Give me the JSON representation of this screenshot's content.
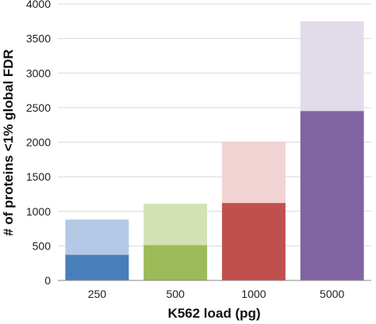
{
  "chart_data": {
    "type": "bar",
    "categories": [
      "250",
      "500",
      "1000",
      "5000"
    ],
    "series": [
      {
        "values": [
          370,
          510,
          1120,
          2450
        ],
        "colors": [
          "#4a7ebb",
          "#9bbb59",
          "#c0504d",
          "#8064a2"
        ]
      },
      {
        "values": [
          880,
          1110,
          2010,
          3750
        ],
        "colors": [
          "#b3c9e6",
          "#d3e2b4",
          "#f0d3d2",
          "#e1dbea"
        ]
      }
    ],
    "xlabel": "K562 load (pg)",
    "ylabel": "# of proteins  <1% global FDR",
    "ylim": [
      0,
      4000
    ],
    "yticks": [
      "0",
      "500",
      "1000",
      "1500",
      "2000",
      "2500",
      "3000",
      "3500",
      "4000"
    ],
    "grid": true
  }
}
